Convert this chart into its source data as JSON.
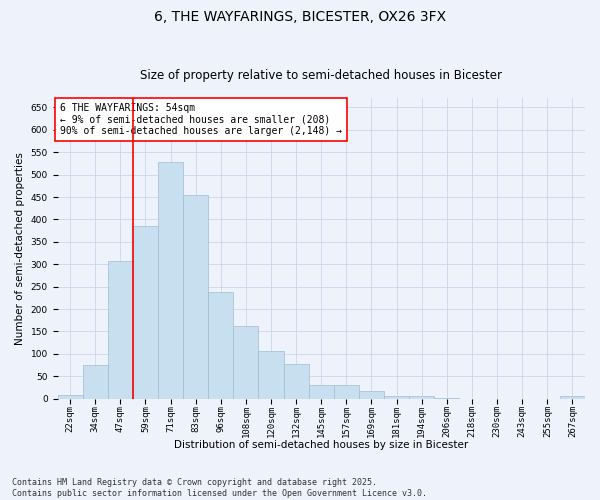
{
  "title": "6, THE WAYFARINGS, BICESTER, OX26 3FX",
  "subtitle": "Size of property relative to semi-detached houses in Bicester",
  "xlabel": "Distribution of semi-detached houses by size in Bicester",
  "ylabel": "Number of semi-detached properties",
  "footer_line1": "Contains HM Land Registry data © Crown copyright and database right 2025.",
  "footer_line2": "Contains public sector information licensed under the Open Government Licence v3.0.",
  "annotation_title": "6 THE WAYFARINGS: 54sqm",
  "annotation_line1": "← 9% of semi-detached houses are smaller (208)",
  "annotation_line2": "90% of semi-detached houses are larger (2,148) →",
  "bin_labels": [
    "22sqm",
    "34sqm",
    "47sqm",
    "59sqm",
    "71sqm",
    "83sqm",
    "96sqm",
    "108sqm",
    "120sqm",
    "132sqm",
    "145sqm",
    "157sqm",
    "169sqm",
    "181sqm",
    "194sqm",
    "206sqm",
    "218sqm",
    "230sqm",
    "243sqm",
    "255sqm",
    "267sqm"
  ],
  "bar_values": [
    8,
    75,
    308,
    385,
    528,
    455,
    238,
    162,
    107,
    78,
    30,
    30,
    18,
    5,
    5,
    2,
    0,
    0,
    0,
    0,
    5
  ],
  "bar_color": "#c8dff0",
  "bar_edge_color": "#a0bcd4",
  "vline_x": 2.5,
  "vline_color": "red",
  "ylim": [
    0,
    670
  ],
  "yticks": [
    0,
    50,
    100,
    150,
    200,
    250,
    300,
    350,
    400,
    450,
    500,
    550,
    600,
    650
  ],
  "background_color": "#eef2fb",
  "grid_color": "#c5cfe8",
  "title_fontsize": 10,
  "subtitle_fontsize": 8.5,
  "axis_label_fontsize": 7.5,
  "tick_fontsize": 6.5,
  "annotation_fontsize": 7,
  "footer_fontsize": 6
}
